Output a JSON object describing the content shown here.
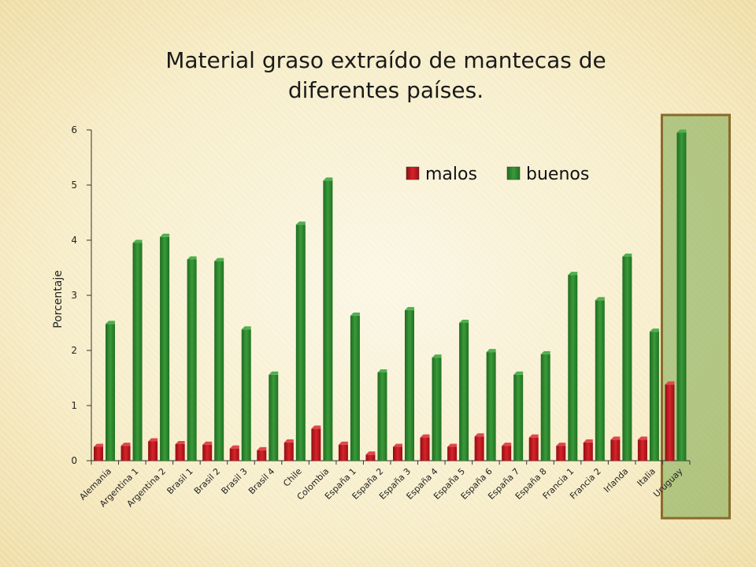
{
  "chart_data": {
    "type": "bar",
    "title_line1": "Material graso extraído de mantecas de",
    "title_line2": "diferentes países.",
    "ylabel": "Porcentaje",
    "xlabel": "",
    "ylim": [
      0,
      6
    ],
    "yticks": [
      "0",
      "1",
      "2",
      "3",
      "4",
      "5",
      "6"
    ],
    "legend_position": "top-right",
    "categories": [
      "Alemania",
      "Argentina 1",
      "Argentina 2",
      "Brasil 1",
      "Brasil 2",
      "Brasil 3",
      "Brasil 4",
      "Chile",
      "Colombia",
      "España 1",
      "España 2",
      "España 3",
      "España 4",
      "España 5",
      "España 6",
      "España 7",
      "España 8",
      "Francia 1",
      "Francia 2",
      "Irlanda",
      "Italia",
      "Uruguay"
    ],
    "series": [
      {
        "name": "malos",
        "color": "#c8161d",
        "values": [
          0.25,
          0.27,
          0.35,
          0.3,
          0.29,
          0.22,
          0.19,
          0.33,
          0.58,
          0.29,
          0.11,
          0.25,
          0.42,
          0.25,
          0.44,
          0.27,
          0.42,
          0.27,
          0.33,
          0.38,
          0.38,
          1.38
        ]
      },
      {
        "name": "buenos",
        "color": "#2f8a2f",
        "values": [
          2.48,
          3.95,
          4.06,
          3.65,
          3.62,
          2.38,
          1.56,
          4.28,
          5.08,
          2.63,
          1.6,
          2.73,
          1.87,
          2.5,
          1.97,
          1.56,
          1.93,
          3.37,
          2.91,
          3.7,
          2.34,
          5.95
        ]
      }
    ],
    "highlight": {
      "category": "Uruguay",
      "color": "#8a6a2a",
      "fill": "#7aa84f"
    },
    "grid": false
  }
}
